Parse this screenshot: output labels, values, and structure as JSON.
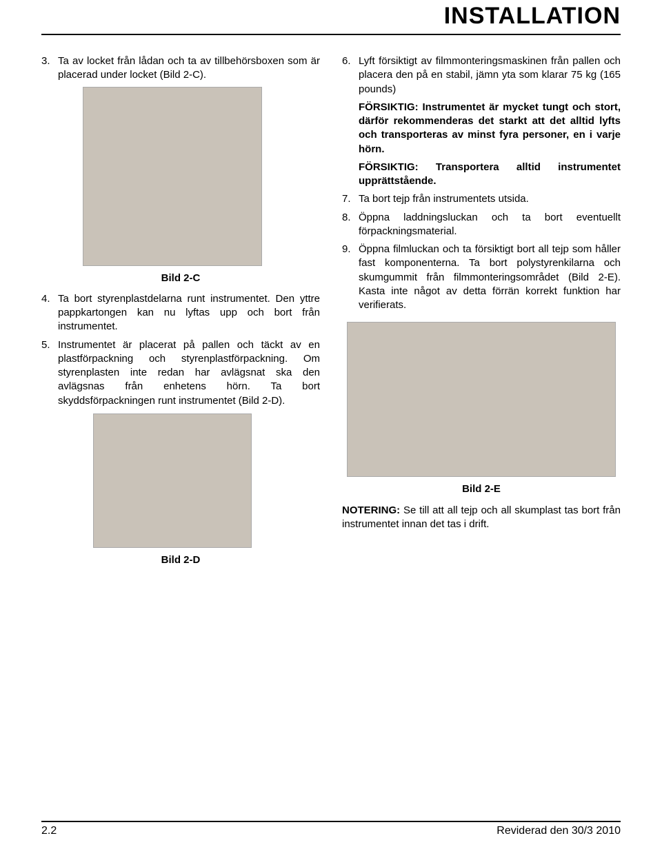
{
  "header": {
    "title": "INSTALLATION"
  },
  "left": {
    "items": [
      {
        "num": "3.",
        "text": "Ta av locket från lådan och ta av tillbehörsboxen som är placerad under locket (Bild 2-C)."
      }
    ],
    "caption_c": "Bild 2-C",
    "items2": [
      {
        "num": "4.",
        "text": "Ta bort styrenplastdelarna runt instrumentet. Den yttre pappkartongen kan nu lyftas upp och bort från instrumentet."
      },
      {
        "num": "5.",
        "text": "Instrumentet är placerat på pallen och täckt av en plastförpackning och styrenplastförpackning. Om styrenplasten inte redan har avlägsnat ska den avlägsnas från enhetens hörn. Ta bort skyddsförpackningen runt instrumentet (Bild 2-D)."
      }
    ],
    "caption_d": "Bild 2-D"
  },
  "right": {
    "items": [
      {
        "num": "6.",
        "text": "Lyft försiktigt av filmmonteringsmaskinen från pallen och placera den på en stabil, jämn yta som klarar 75 kg (165 pounds)"
      }
    ],
    "warn1_label": "FÖRSIKTIG:",
    "warn1_text": " Instrumentet är mycket tungt och stort, därför rekommenderas det starkt att det alltid lyfts och transporteras av minst fyra personer, en i varje hörn.",
    "warn2_label": "FÖRSIKTIG:",
    "warn2_text": " Transportera alltid instrumentet upprättstående.",
    "items2": [
      {
        "num": "7.",
        "text": "Ta bort tejp från instrumentets utsida."
      },
      {
        "num": "8.",
        "text": "Öppna laddningsluckan och ta bort eventuellt förpackningsmaterial."
      },
      {
        "num": "9.",
        "text": "Öppna filmluckan och ta försiktigt bort all tejp som håller fast komponenterna. Ta bort polystyrenkilarna och skumgummit från filmmonteringsområdet (Bild 2-E). Kasta inte något av detta förrän korrekt funktion har verifierats."
      }
    ],
    "caption_e": "Bild 2-E",
    "note_label": "NOTERING:",
    "note_text": " Se till att all tejp och all skumplast tas bort från instrumentet innan det tas i drift."
  },
  "footer": {
    "page": "2.2",
    "revised": "Reviderad den 30/3 2010"
  }
}
